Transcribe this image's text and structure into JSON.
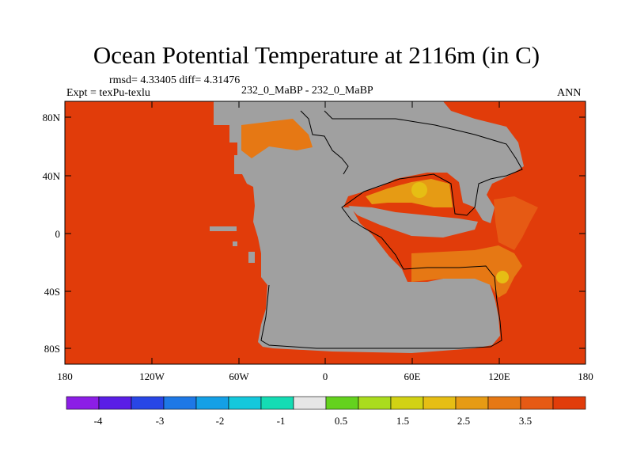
{
  "title": "Ocean Potential Temperature at 2116m (in C)",
  "stats": "rmsd= 4.33405 diff= 4.31476",
  "expt": "Expt = texPu-texlu",
  "cases": "232_0_MaBP - 232_0_MaBP",
  "season": "ANN",
  "axes": {
    "y_ticks": [
      "80N",
      "40N",
      "0",
      "40S",
      "80S"
    ],
    "x_ticks": [
      "180",
      "120W",
      "60W",
      "0",
      "60E",
      "120E",
      "180"
    ]
  },
  "legend": {
    "labels": [
      "-4",
      "-3",
      "-2",
      "-1",
      "0.5",
      "1.5",
      "2.5",
      "3.5"
    ],
    "colors": [
      "#8c1ee6",
      "#5a1ee6",
      "#2846e6",
      "#1e78e6",
      "#14a0e6",
      "#14c8dc",
      "#14dcb4",
      "#e6e6e6",
      "#64d21e",
      "#aadc1e",
      "#d2d214",
      "#e6be14",
      "#e69b14",
      "#e67814",
      "#e65a14",
      "#e13c0a"
    ]
  },
  "colors": {
    "land": "#a0a0a0",
    "warm": "#e13c0a",
    "warmer": "#e65a14",
    "hot": "#e67814",
    "hotter": "#e69b14",
    "hottest": "#e6be14"
  }
}
